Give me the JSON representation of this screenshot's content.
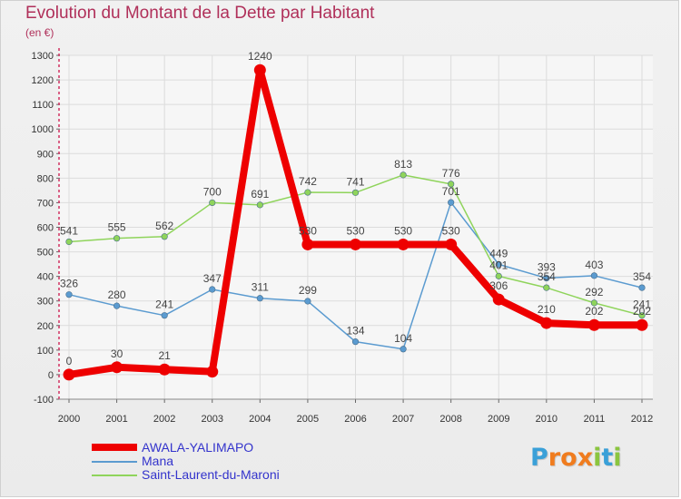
{
  "header": {
    "title": "Evolution du Montant de la Dette par Habitant",
    "unit": "(en €)"
  },
  "brand": {
    "logo_text": "Proxiti",
    "letters": [
      "P",
      "r",
      "o",
      "x",
      "i",
      "t",
      "i"
    ],
    "letter_colors": [
      "#3aa0d8",
      "#f07c1e",
      "#f07c1e",
      "#f07c1e",
      "#8bc53f",
      "#3aa0d8",
      "#8bc53f"
    ]
  },
  "chart_data": {
    "type": "line",
    "title": "Evolution du Montant de la Dette par Habitant",
    "ylabel": "(en €)",
    "xlabel": "",
    "ylim": [
      -100,
      1300
    ],
    "yticks": [
      -100,
      0,
      100,
      200,
      300,
      400,
      500,
      600,
      700,
      800,
      900,
      1000,
      1100,
      1200,
      1300
    ],
    "categories": [
      "2000",
      "2001",
      "2002",
      "2003",
      "2004",
      "2005",
      "2006",
      "2007",
      "2008",
      "2009",
      "2010",
      "2011",
      "2012"
    ],
    "grid": true,
    "legend_position": "bottom-left",
    "series": [
      {
        "name": "AWALA-YALIMAPO",
        "color": "#ee0000",
        "values": [
          0,
          30,
          21,
          12,
          1240,
          530,
          530,
          530,
          530,
          306,
          210,
          202,
          202
        ],
        "labels": [
          "0",
          "30",
          "21",
          "",
          "1240",
          "530",
          "530",
          "530",
          "530",
          "306",
          "210",
          "202",
          "202"
        ],
        "emphasis": true
      },
      {
        "name": "Mana",
        "color": "#5b9bd0",
        "values": [
          326,
          280,
          241,
          347,
          311,
          299,
          134,
          104,
          701,
          449,
          393,
          403,
          354
        ],
        "labels": [
          "326",
          "280",
          "241",
          "347",
          "311",
          "299",
          "134",
          "104",
          "701",
          "449",
          "393",
          "403",
          "354"
        ],
        "emphasis": false
      },
      {
        "name": "Saint-Laurent-du-Maroni",
        "color": "#8fd45b",
        "values": [
          541,
          555,
          562,
          700,
          691,
          742,
          741,
          813,
          776,
          401,
          354,
          292,
          241
        ],
        "labels": [
          "541",
          "555",
          "562",
          "700",
          "691",
          "742",
          "741",
          "813",
          "776",
          "401",
          "354",
          "292",
          "241"
        ],
        "emphasis": false
      }
    ]
  }
}
